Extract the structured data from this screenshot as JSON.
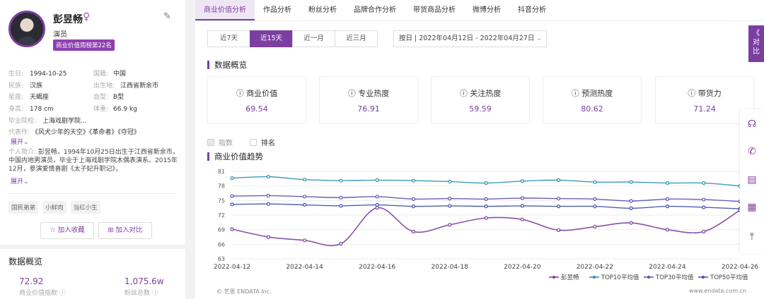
{
  "profile": {
    "name": "彭昱畅",
    "gender_symbol": "♀",
    "role": "演员",
    "rank_badge": "商业价值周榜第22名",
    "fields": [
      {
        "k1": "生日:",
        "v1": "1994-10-25",
        "k2": "国籍:",
        "v2": "中国"
      },
      {
        "k1": "民族:",
        "v1": "汉族",
        "k2": "出生地:",
        "v2": "江西省新余市"
      },
      {
        "k1": "星座:",
        "v1": "天蝎座",
        "k2": "血型:",
        "v2": "B型"
      },
      {
        "k1": "身高:",
        "v1": "178 cm",
        "k2": "体重:",
        "v2": "66.9 kg"
      }
    ],
    "school_label": "毕业院校:",
    "school": "上海戏剧学院...",
    "works_label": "代表作:",
    "works": "《风犬少年的天空》《革命者》《夺冠》",
    "expand": "展开",
    "intro_label": "个人简介:",
    "intro": "彭昱畅，1994年10月25日出生于江西省新余市，中国内地男演员，毕业于上海戏剧学院木偶表演系。2015年12月，参演爱情喜剧《太子妃升职记》，",
    "tags": [
      "国民弟弟",
      "小鲜肉",
      "当红小生"
    ],
    "add_favorite": "加入收藏",
    "add_compare": "加入对比",
    "overview_title": "数据概览",
    "stats": [
      {
        "value": "72.92",
        "label": "商业价值指数"
      },
      {
        "value": "1,075.6w",
        "label": "粉丝总数"
      }
    ]
  },
  "tabs": [
    "商业价值分析",
    "作品分析",
    "粉丝分析",
    "品牌合作分析",
    "带货商品分析",
    "微博分析",
    "抖音分析"
  ],
  "range_buttons": [
    "近7天",
    "近15天",
    "近一月",
    "近三月"
  ],
  "date_select": "按日 | 2022年04月12日 - 2022年04月27日",
  "overview_title": "数据概览",
  "metrics": [
    {
      "label": "商业价值",
      "value": "69.54"
    },
    {
      "label": "专业热度",
      "value": "76.91"
    },
    {
      "label": "关注热度",
      "value": "59.59"
    },
    {
      "label": "预测热度",
      "value": "80.62"
    },
    {
      "label": "带货力",
      "value": "71.24"
    }
  ],
  "options": {
    "index": "指数",
    "rank": "排名"
  },
  "trend_title": "商业价值趋势",
  "compare_label": [
    "《",
    "对",
    "比"
  ],
  "footer_left": "© 艺恩 ENDATA Inc.",
  "footer_right": "www.endata.com.cn",
  "icons": [
    "headset-icon",
    "phone-icon",
    "document-icon",
    "qrcode-icon",
    "back-to-top-icon"
  ],
  "colors": {
    "accent": "#7b3fa0",
    "top10": "#2a8fb5",
    "top30": "#5a4fb0",
    "top50": "#3b4fa8",
    "self": "#7b3fa0"
  },
  "chart_data": {
    "type": "line",
    "x": [
      "2022-04-12",
      "2022-04-13",
      "2022-04-14",
      "2022-04-15",
      "2022-04-16",
      "2022-04-17",
      "2022-04-18",
      "2022-04-19",
      "2022-04-20",
      "2022-04-21",
      "2022-04-22",
      "2022-04-23",
      "2022-04-24",
      "2022-04-25",
      "2022-04-26"
    ],
    "x_tick_labels": [
      "2022-04-12",
      "2022-04-14",
      "2022-04-16",
      "2022-04-18",
      "2022-04-20",
      "2022-04-22",
      "2022-04-24",
      "2022-04-26"
    ],
    "y_ticks": [
      63,
      66,
      69,
      72,
      75,
      78,
      81
    ],
    "ylim": [
      63,
      81
    ],
    "series": [
      {
        "name": "彭昱畅",
        "values": [
          69.1,
          67.5,
          66.8,
          66.1,
          73.5,
          68.6,
          70.0,
          71.4,
          71.1,
          68.9,
          69.6,
          70.4,
          69.0,
          68.6,
          73.0
        ]
      },
      {
        "name": "TOP10平均值",
        "values": [
          79.6,
          79.9,
          79.3,
          79.1,
          79.2,
          79.1,
          78.9,
          78.6,
          79.0,
          79.2,
          78.8,
          78.8,
          78.6,
          78.6,
          78.0
        ]
      },
      {
        "name": "TOP30平均值",
        "values": [
          75.9,
          76.0,
          75.8,
          75.6,
          75.8,
          75.3,
          75.4,
          75.3,
          75.5,
          75.4,
          75.3,
          74.9,
          75.3,
          75.2,
          74.8
        ]
      },
      {
        "name": "TOP50平均值",
        "values": [
          74.2,
          74.3,
          74.1,
          73.9,
          74.1,
          73.8,
          73.9,
          73.8,
          73.9,
          73.8,
          73.8,
          73.4,
          73.8,
          73.6,
          73.3
        ]
      }
    ],
    "legend_position": "bottom-right",
    "grid": true
  }
}
